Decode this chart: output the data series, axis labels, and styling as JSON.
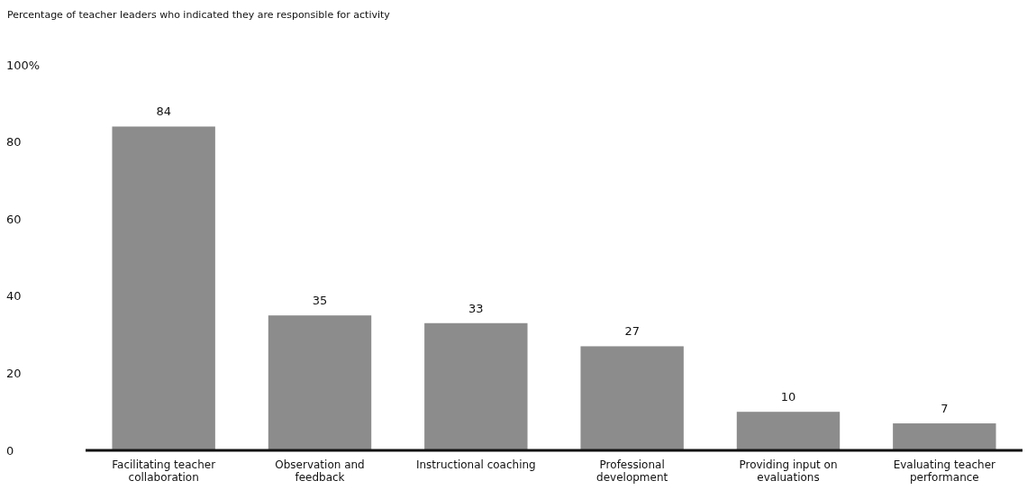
{
  "chart_data": {
    "type": "bar",
    "title": "Percentage of teacher leaders who indicated they are responsible for activity",
    "categories": [
      "Facilitating teacher collaboration",
      "Observation and feedback",
      "Instructional coaching",
      "Professional development",
      "Providing input on evaluations",
      "Evaluating teacher performance"
    ],
    "values": [
      84,
      35,
      33,
      27,
      10,
      7
    ],
    "color": "#8c8c8c",
    "ylim": [
      0,
      100
    ],
    "yticks": [
      0,
      20,
      40,
      60,
      80,
      {
        "value": 100,
        "label": "100%"
      }
    ],
    "grid": false,
    "data_labels": true
  }
}
